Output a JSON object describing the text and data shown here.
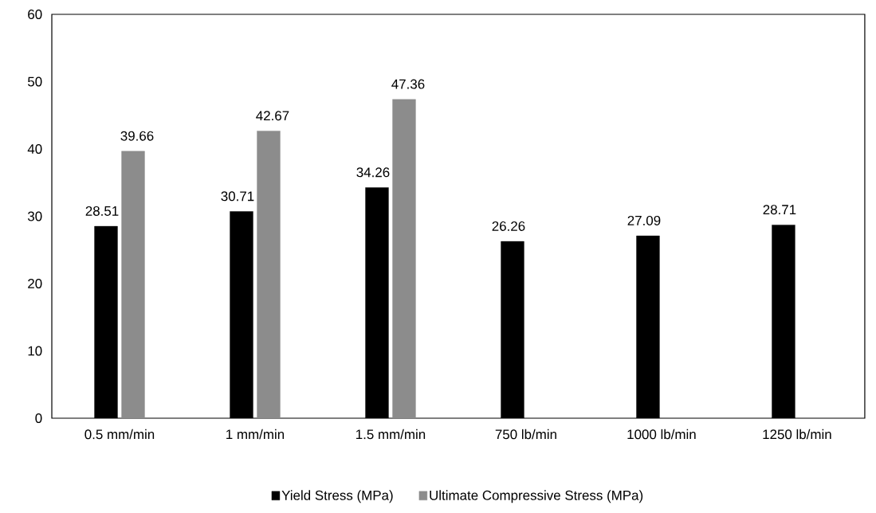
{
  "chart_data": {
    "type": "bar",
    "categories": [
      "0.5 mm/min",
      "1 mm/min",
      "1.5 mm/min",
      "750 lb/min",
      "1000 lb/min",
      "1250 lb/min"
    ],
    "series": [
      {
        "name": "Yield Stress (MPa)",
        "color": "#000000",
        "values": [
          28.51,
          30.71,
          34.26,
          26.26,
          27.09,
          28.71
        ]
      },
      {
        "name": "Ultimate Compressive Stress (MPa)",
        "color": "#8c8c8c",
        "values": [
          39.66,
          42.67,
          47.36,
          null,
          null,
          null
        ]
      }
    ],
    "ylim": [
      0,
      60
    ],
    "yticks": [
      0,
      10,
      20,
      30,
      40,
      50,
      60
    ],
    "data_labels": true,
    "legend": "bottom",
    "grid": false
  }
}
